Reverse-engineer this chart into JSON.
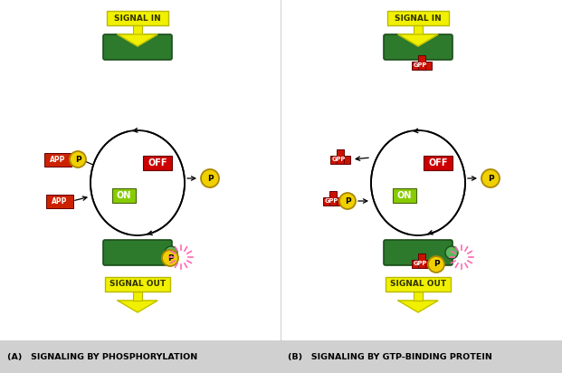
{
  "white": "#ffffff",
  "green_dark": "#2d7a2d",
  "green_light": "#5cb85c",
  "yellow_signal": "#f0f000",
  "yellow_border": "#b8b800",
  "yellow_P": "#f0d000",
  "red_app": "#cc2200",
  "red_off": "#cc0000",
  "red_gpp": "#cc1100",
  "green_on": "#88cc00",
  "gray_bg": "#d0d0d0",
  "panel_A_label": "(A)   SIGNALING BY PHOSPHORYLATION",
  "panel_B_label": "(B)   SIGNALING BY GTP-BINDING PROTEIN",
  "signal_in": "SIGNAL IN",
  "signal_out": "SIGNAL OUT",
  "off_label": "OFF",
  "on_label": "ON",
  "app_label": "APP",
  "gpp_label": "GPP",
  "p_label": "P",
  "figw": 6.21,
  "figh": 4.12,
  "dpi": 100
}
